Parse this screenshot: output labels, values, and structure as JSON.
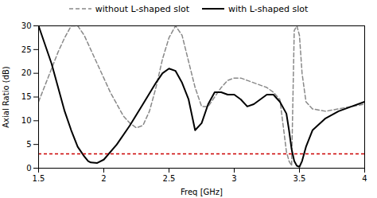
{
  "chart_data": {
    "type": "line",
    "xlabel": "Freq [GHz]",
    "ylabel": "Axial Ratio (dB)",
    "xlim": [
      1.5,
      4.0
    ],
    "ylim": [
      0,
      30
    ],
    "xticks": [
      1.5,
      2,
      2.5,
      3,
      3.5,
      4
    ],
    "yticks": [
      0,
      5,
      10,
      15,
      20,
      25,
      30
    ],
    "grid": false,
    "legend": "top",
    "hline": {
      "y": 3.0,
      "color": "#cc0000",
      "line_style": "dashed"
    },
    "series": [
      {
        "name": "without L-shaped slot",
        "color": "#888888",
        "line_style": "dashed",
        "x": [
          1.5,
          1.55,
          1.6,
          1.65,
          1.7,
          1.75,
          1.8,
          1.85,
          1.9,
          1.95,
          2.0,
          2.05,
          2.1,
          2.15,
          2.2,
          2.25,
          2.3,
          2.35,
          2.4,
          2.45,
          2.5,
          2.55,
          2.6,
          2.65,
          2.7,
          2.75,
          2.8,
          2.85,
          2.9,
          2.95,
          3.0,
          3.05,
          3.1,
          3.15,
          3.2,
          3.25,
          3.3,
          3.35,
          3.4,
          3.42,
          3.44,
          3.46,
          3.48,
          3.5,
          3.52,
          3.55,
          3.6,
          3.7,
          3.8,
          3.9,
          4.0
        ],
        "values": [
          14.0,
          17.5,
          21.0,
          24.5,
          27.5,
          30.0,
          30.0,
          28.0,
          25.0,
          22.0,
          19.0,
          16.0,
          13.5,
          11.0,
          9.5,
          8.5,
          9.0,
          12.0,
          17.0,
          23.0,
          27.5,
          30.0,
          28.0,
          22.5,
          17.0,
          13.0,
          13.0,
          15.0,
          17.0,
          18.5,
          19.0,
          19.0,
          18.5,
          18.0,
          17.5,
          17.0,
          16.0,
          14.5,
          3.5,
          1.5,
          0.5,
          29.0,
          30.0,
          28.0,
          20.0,
          14.0,
          12.5,
          12.0,
          12.5,
          13.0,
          13.5
        ]
      },
      {
        "name": "with L-shaped slot",
        "color": "#000000",
        "line_style": "solid",
        "x": [
          1.5,
          1.6,
          1.7,
          1.75,
          1.8,
          1.85,
          1.88,
          1.9,
          1.95,
          2.0,
          2.1,
          2.2,
          2.3,
          2.4,
          2.45,
          2.5,
          2.55,
          2.6,
          2.65,
          2.7,
          2.75,
          2.8,
          2.85,
          2.9,
          2.95,
          3.0,
          3.05,
          3.1,
          3.15,
          3.2,
          3.25,
          3.3,
          3.35,
          3.4,
          3.42,
          3.44,
          3.46,
          3.48,
          3.5,
          3.52,
          3.55,
          3.6,
          3.7,
          3.8,
          3.9,
          4.0
        ],
        "values": [
          30,
          22,
          12,
          8,
          4.5,
          2.5,
          1.5,
          1.2,
          1.1,
          1.8,
          5.0,
          9.0,
          13.5,
          18.0,
          20.0,
          21.0,
          20.5,
          18.0,
          14.5,
          8.0,
          9.5,
          13.5,
          16.0,
          16.0,
          15.5,
          15.5,
          14.5,
          13.0,
          13.5,
          14.5,
          15.5,
          15.5,
          14.0,
          11.5,
          8.0,
          4.0,
          1.5,
          0.5,
          0.3,
          1.5,
          4.5,
          8.0,
          10.5,
          12.0,
          13.0,
          14.0
        ]
      }
    ]
  }
}
